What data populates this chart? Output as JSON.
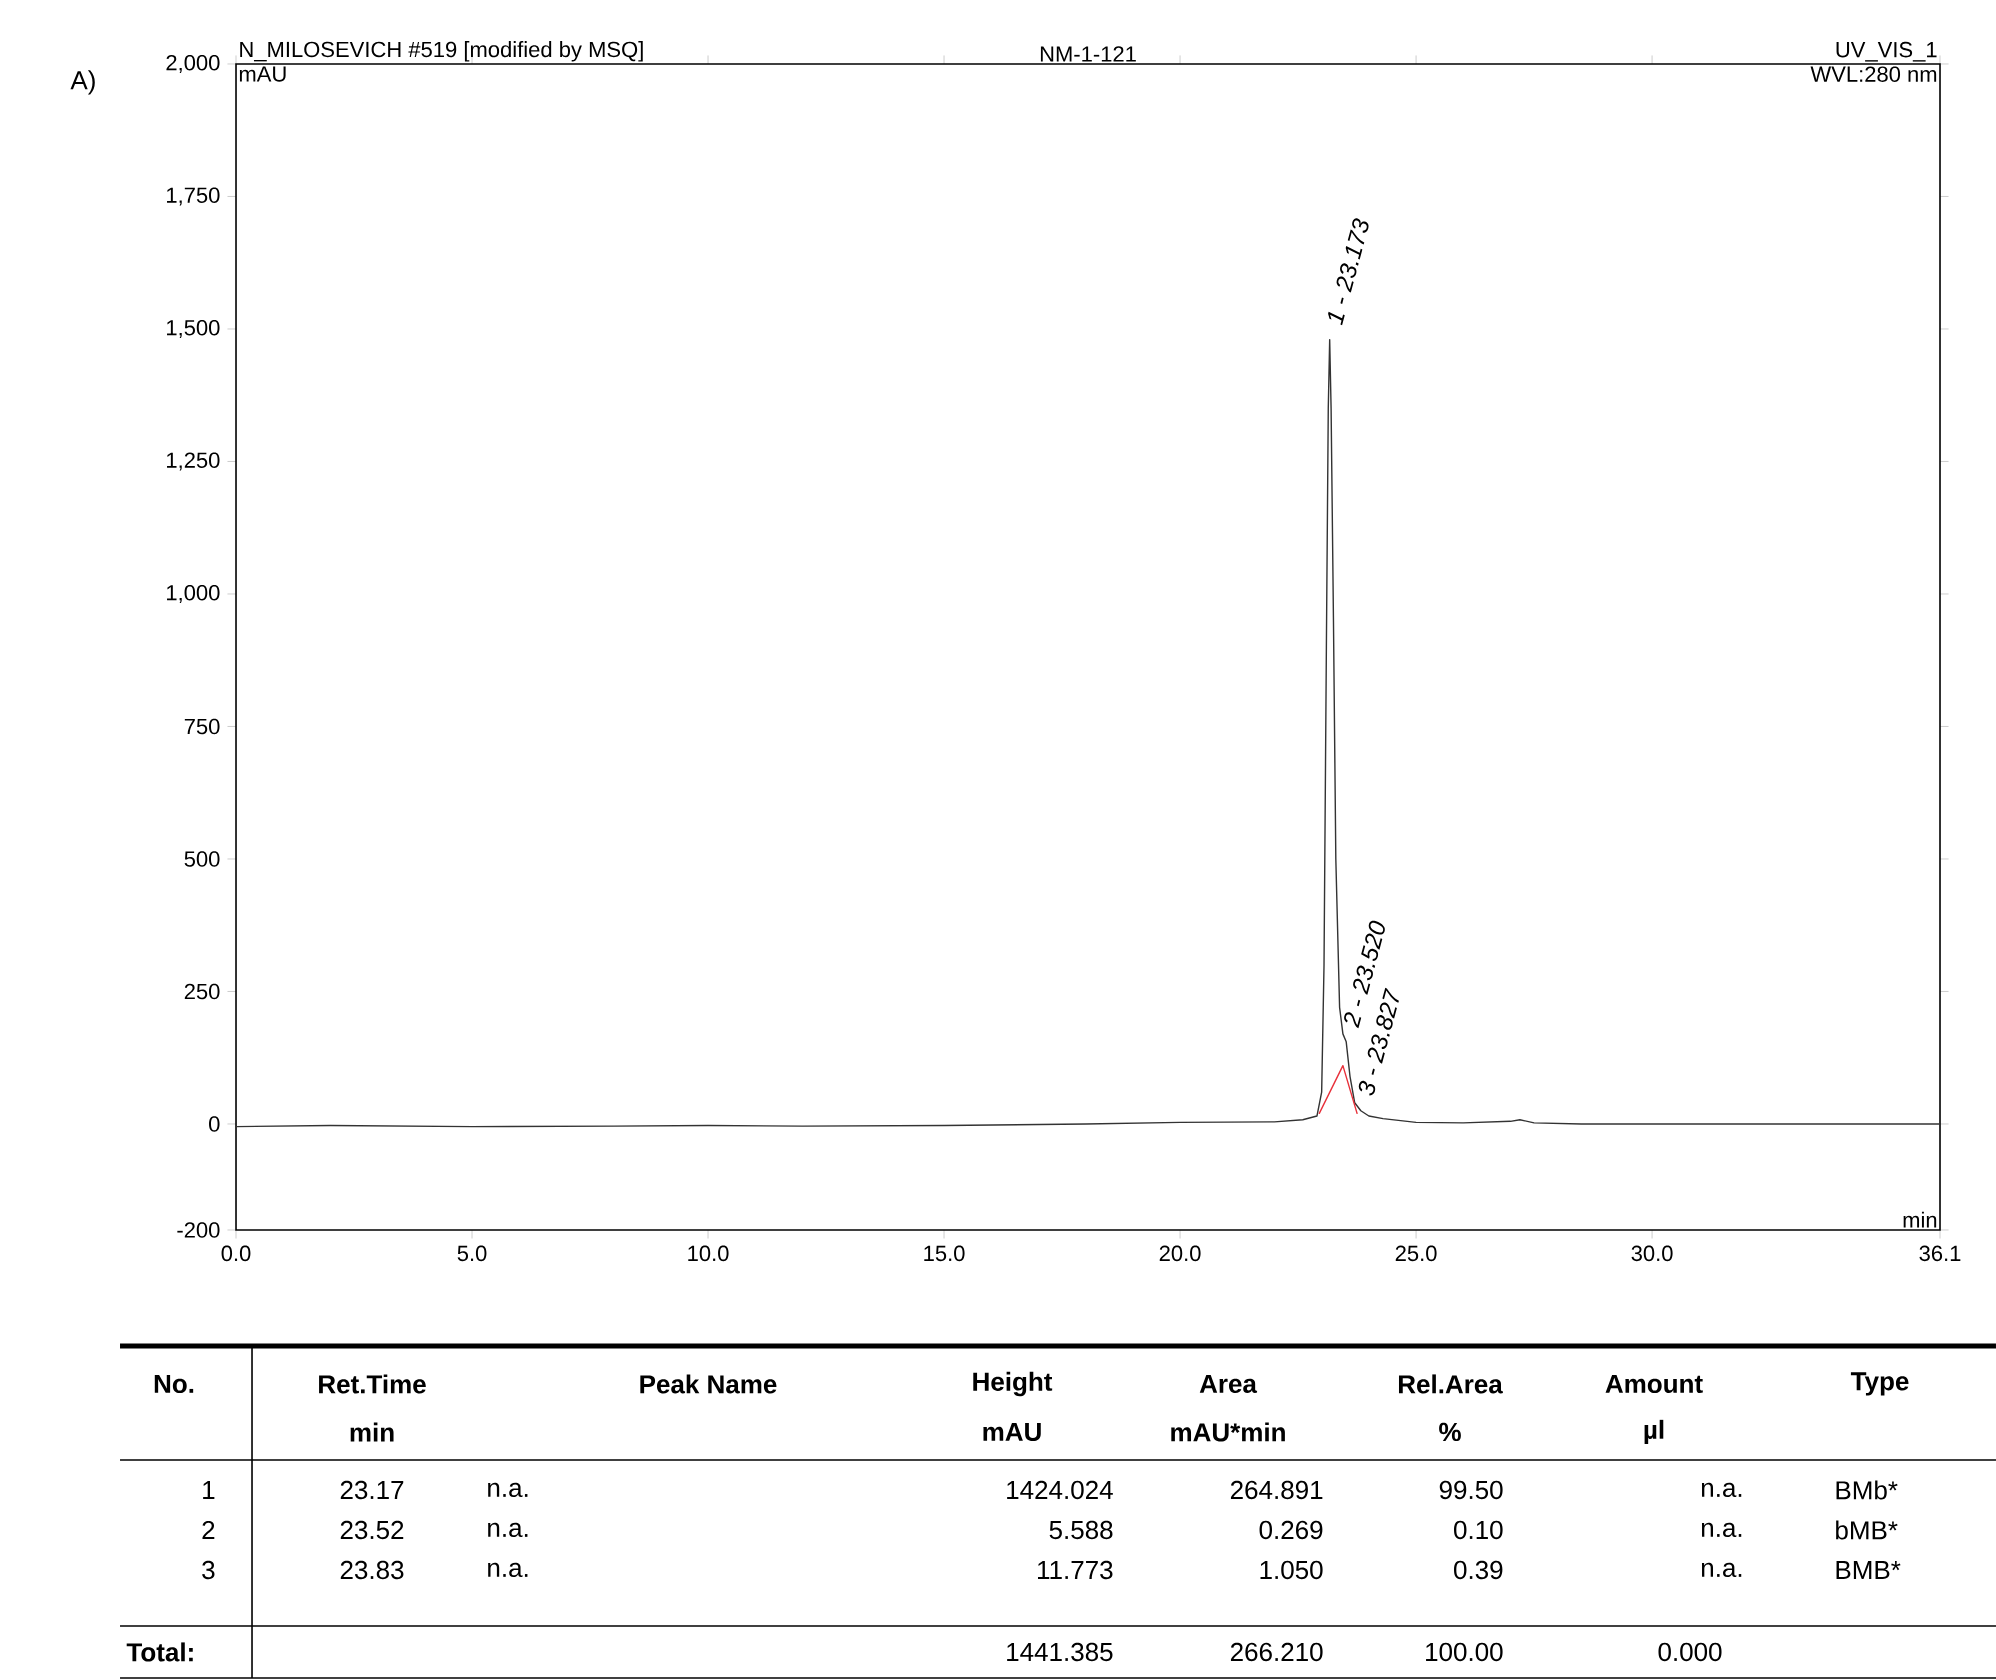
{
  "chart_data": [
    {
      "type": "line",
      "title": "N_MILOSEVICH #519 [modified by MSQ]",
      "subtitle": "NM-1-121",
      "xlabel": "min",
      "ylabel": "mAU",
      "xlim": [
        0,
        36.1
      ],
      "ylim": [
        -200,
        2000
      ],
      "xticks": [
        {
          "value": 0,
          "label": "0.0"
        },
        {
          "value": 5,
          "label": "5.0"
        },
        {
          "value": 10,
          "label": "10.0"
        },
        {
          "value": 15,
          "label": "15.0"
        },
        {
          "value": 20,
          "label": "20.0"
        },
        {
          "value": 25,
          "label": "25.0"
        },
        {
          "value": 30,
          "label": "30.0"
        },
        {
          "value": 36.1,
          "label": "36.1"
        }
      ],
      "yticks": [
        -200,
        0,
        250,
        500,
        750,
        {
          "value": 1000,
          "label": "1,000"
        },
        {
          "value": 1250,
          "label": "1,250"
        },
        {
          "value": 1500,
          "label": "1,500"
        },
        {
          "value": 1750,
          "label": "1,750"
        },
        {
          "value": 2000,
          "label": "2,000"
        }
      ],
      "grid": false,
      "marker": "none",
      "line_style": "solid",
      "series": [
        {
          "color": "#333333",
          "x": [
            0,
            2,
            5,
            8,
            10,
            12,
            15,
            18,
            20,
            22,
            22.6,
            22.9,
            23.0,
            23.05,
            23.1,
            23.14,
            23.17,
            23.2,
            23.25,
            23.3,
            23.38,
            23.45,
            23.52,
            23.6,
            23.7,
            23.83,
            24.0,
            24.3,
            25.0,
            26.0,
            27.0,
            27.2,
            27.5,
            28.5,
            30.0,
            33.0,
            36.1
          ],
          "values": [
            -5,
            -3,
            -5,
            -4,
            -3,
            -4,
            -3,
            0,
            3,
            4,
            8,
            15,
            60,
            300,
            900,
            1350,
            1480,
            1350,
            950,
            500,
            220,
            170,
            155,
            90,
            40,
            25,
            15,
            10,
            3,
            2,
            5,
            8,
            2,
            0,
            0,
            0,
            0
          ]
        },
        {
          "color": "#e8303a",
          "x": [
            22.95,
            23.45,
            23.75
          ],
          "values": [
            20,
            110,
            20
          ]
        }
      ],
      "annotations": [
        {
          "text": "1 - 23.173",
          "x": 23.17,
          "y": 1480
        },
        {
          "text": "2 - 23.520",
          "x": 23.52,
          "y": 155
        },
        {
          "text": "3 - 23.827",
          "x": 23.83,
          "y": 25
        },
        "UV_VIS_1",
        "WVL:280 nm",
        "A)"
      ]
    },
    {
      "type": "other",
      "annotations": [
        "No.",
        "Ret.Time",
        "Peak Name",
        "Height",
        "Area",
        "Rel.Area",
        "Amount",
        "Type",
        "min",
        "mAU",
        "mAU*min",
        "%",
        "µl",
        "1",
        "23.17",
        "n.a.",
        "1424.024",
        "264.891",
        "99.50",
        "n.a.",
        "BMb*",
        "2",
        "23.52",
        "n.a.",
        "5.588",
        "0.269",
        "0.10",
        "n.a.",
        "bMB*",
        "3",
        "23.83",
        "n.a.",
        "11.773",
        "1.050",
        "0.39",
        "n.a.",
        "BMB*",
        "Total:",
        "1441.385",
        "266.210",
        "100.00",
        "0.000"
      ]
    }
  ]
}
